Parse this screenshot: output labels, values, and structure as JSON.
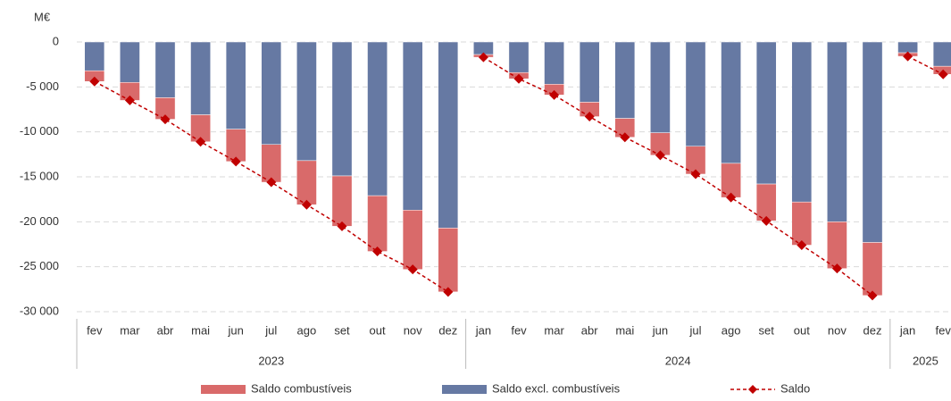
{
  "chart_data": {
    "type": "stacked-bar-line",
    "y_label": "M€",
    "groups": [
      {
        "name": "2023",
        "categories": [
          "fev",
          "mar",
          "abr",
          "mai",
          "jun",
          "jul",
          "ago",
          "set",
          "out",
          "nov",
          "dez"
        ]
      },
      {
        "name": "2024",
        "categories": [
          "jan",
          "fev",
          "mar",
          "abr",
          "mai",
          "jun",
          "jul",
          "ago",
          "set",
          "out",
          "nov",
          "dez"
        ]
      },
      {
        "name": "2025",
        "categories": [
          "jan",
          "fev"
        ]
      }
    ],
    "series": [
      {
        "name": "Saldo excl. combustíveis",
        "kind": "bar",
        "color": "#6679a3",
        "values": [
          -3200,
          -4500,
          -6200,
          -8100,
          -9700,
          -11400,
          -13200,
          -14900,
          -17100,
          -18700,
          -20700,
          -1400,
          -3400,
          -4700,
          -6700,
          -8500,
          -10100,
          -11600,
          -13500,
          -15800,
          -17800,
          -20000,
          -22300,
          -1200,
          -2700
        ]
      },
      {
        "name": "Saldo combustíveis",
        "kind": "bar",
        "color": "#d96a6a",
        "values": [
          -1200,
          -2000,
          -2400,
          -3000,
          -3600,
          -4200,
          -4900,
          -5600,
          -6200,
          -6600,
          -7100,
          -300,
          -700,
          -1200,
          -1600,
          -2100,
          -2500,
          -3100,
          -3800,
          -4100,
          -4800,
          -5200,
          -5900,
          -400,
          -900
        ]
      },
      {
        "name": "Saldo",
        "kind": "line",
        "color": "#c00000",
        "values": [
          -4400,
          -6500,
          -8600,
          -11100,
          -13300,
          -15600,
          -18100,
          -20500,
          -23300,
          -25300,
          -27800,
          -1700,
          -4100,
          -5900,
          -8300,
          -10600,
          -12600,
          -14700,
          -17300,
          -19900,
          -22600,
          -25200,
          -28200,
          -1600,
          -3600
        ]
      }
    ],
    "legend_order": [
      1,
      0,
      2
    ],
    "ylim": [
      -30000,
      0
    ],
    "yticks": [
      0,
      {
        "value": -5000,
        "label": "-5 000"
      },
      {
        "value": -10000,
        "label": "-10 000"
      },
      {
        "value": -15000,
        "label": "-15 000"
      },
      {
        "value": -20000,
        "label": "-20 000"
      },
      {
        "value": -25000,
        "label": "-25 000"
      },
      {
        "value": -30000,
        "label": "-30 000"
      }
    ],
    "grid": true
  }
}
